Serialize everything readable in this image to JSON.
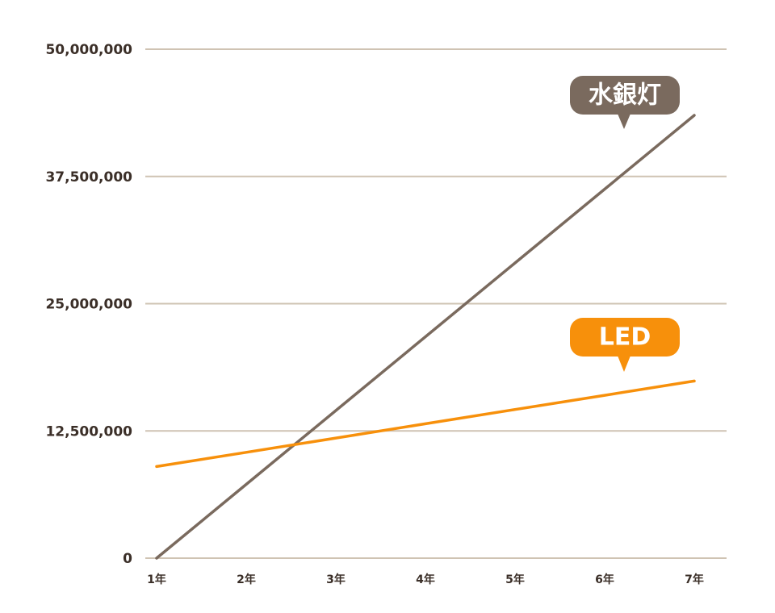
{
  "chart_data": {
    "type": "line",
    "x": [
      "1年",
      "2年",
      "3年",
      "4年",
      "5年",
      "6年",
      "7年"
    ],
    "y_ticks": [
      "0",
      "12,500,000",
      "25,000,000",
      "37,500,000",
      "50,000,000"
    ],
    "ylim": [
      0,
      50000000
    ],
    "grid": true,
    "series": [
      {
        "name": "水銀灯",
        "color": "#7a6a5e",
        "values": [
          0,
          7250000,
          14500000,
          21750000,
          29000000,
          36250000,
          43500000
        ]
      },
      {
        "name": "LED",
        "color": "#f7900b",
        "values": [
          9000000,
          10400000,
          11800000,
          13200000,
          14600000,
          16000000,
          17400000
        ]
      }
    ]
  }
}
